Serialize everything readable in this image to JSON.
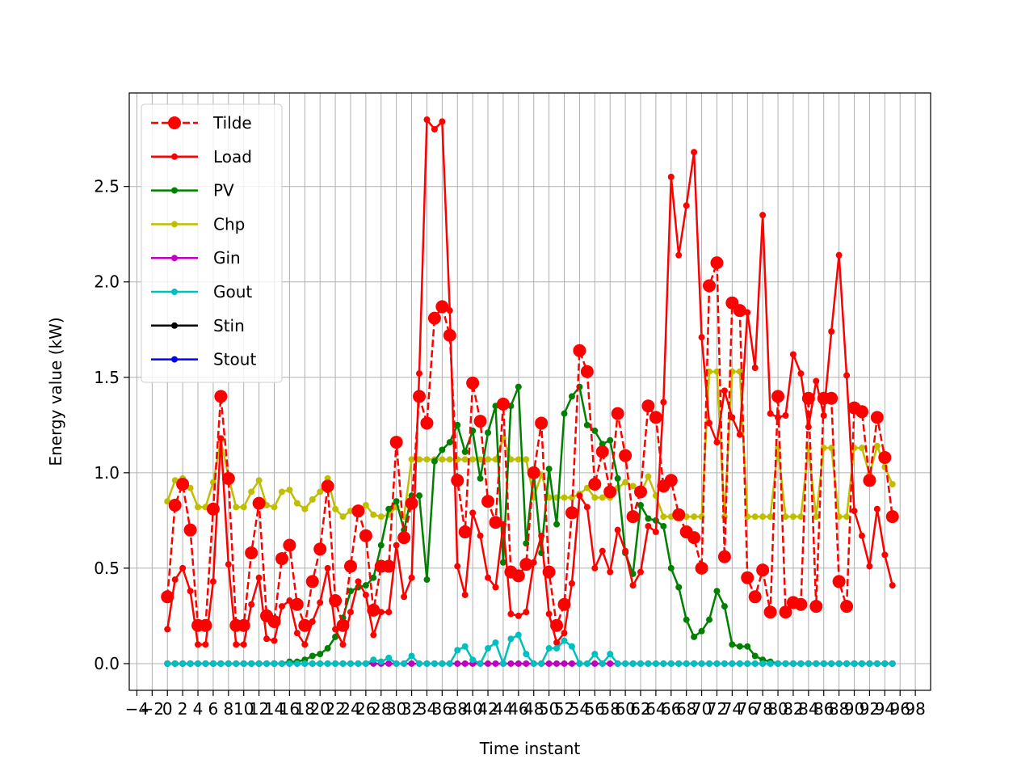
{
  "chart_data": {
    "type": "line",
    "title": "",
    "xlabel": "Time instant",
    "ylabel": "Energy value (kW)",
    "xlim": [
      -5,
      100
    ],
    "ylim": [
      -0.14,
      2.99
    ],
    "grid": true,
    "legend_position": "upper-left",
    "xticks": [
      -4,
      -2,
      0,
      2,
      4,
      6,
      8,
      10,
      12,
      14,
      16,
      18,
      20,
      22,
      24,
      26,
      28,
      30,
      32,
      34,
      36,
      38,
      40,
      42,
      44,
      46,
      48,
      50,
      52,
      54,
      56,
      58,
      60,
      62,
      64,
      66,
      68,
      70,
      72,
      74,
      76,
      78,
      80,
      82,
      84,
      86,
      88,
      90,
      92,
      94,
      96,
      98
    ],
    "yticks": [
      0.0,
      0.5,
      1.0,
      1.5,
      2.0,
      2.5
    ],
    "ytick_labels": [
      "0.0",
      "0.5",
      "1.0",
      "1.5",
      "2.0",
      "2.5"
    ],
    "series": [
      {
        "name": "Tilde",
        "color": "#ff0000",
        "style": "dashed",
        "marker": "large-dot",
        "values": [
          0.35,
          0.83,
          0.94,
          0.7,
          0.2,
          0.2,
          0.81,
          1.4,
          0.97,
          0.2,
          0.2,
          0.58,
          0.84,
          0.25,
          0.22,
          0.55,
          0.62,
          0.31,
          0.2,
          0.43,
          0.6,
          0.93,
          0.33,
          0.2,
          0.51,
          0.8,
          0.67,
          0.28,
          0.51,
          0.51,
          1.16,
          0.66,
          0.84,
          1.4,
          1.26,
          1.81,
          1.87,
          1.72,
          0.96,
          0.69,
          1.47,
          1.27,
          0.85,
          0.74,
          1.36,
          0.48,
          0.46,
          0.52,
          1.0,
          1.26,
          0.48,
          0.2,
          0.31,
          0.79,
          1.64,
          1.53,
          0.94,
          1.11,
          0.9,
          1.31,
          1.09,
          0.77,
          0.9,
          1.35,
          1.29,
          0.93,
          0.96,
          0.78,
          0.69,
          0.66,
          0.5,
          1.98,
          2.1,
          0.56,
          1.89,
          1.85,
          0.45,
          0.35,
          0.49,
          0.27,
          1.4,
          0.27,
          0.32,
          0.31,
          1.39,
          0.3,
          1.39,
          1.39,
          0.43,
          0.3,
          1.34,
          1.32,
          0.96,
          1.29,
          1.08,
          0.77
        ]
      },
      {
        "name": "Load",
        "color": "#ff0000",
        "style": "solid",
        "marker": "small-dot",
        "values": [
          0.18,
          0.44,
          0.5,
          0.38,
          0.1,
          0.1,
          0.43,
          1.18,
          0.52,
          0.1,
          0.1,
          0.31,
          0.45,
          0.13,
          0.12,
          0.3,
          0.33,
          0.16,
          0.1,
          0.22,
          0.32,
          0.5,
          0.18,
          0.1,
          0.27,
          0.43,
          0.36,
          0.15,
          0.27,
          0.27,
          0.62,
          0.35,
          0.45,
          1.52,
          2.85,
          2.8,
          2.84,
          1.85,
          0.51,
          0.36,
          0.79,
          0.67,
          0.45,
          0.4,
          0.73,
          0.26,
          0.25,
          0.27,
          0.53,
          0.67,
          0.26,
          0.11,
          0.16,
          0.42,
          0.88,
          0.82,
          0.5,
          0.59,
          0.48,
          0.7,
          0.59,
          0.41,
          0.48,
          0.72,
          0.69,
          1.37,
          2.55,
          2.14,
          2.4,
          2.68,
          1.71,
          1.26,
          1.16,
          1.43,
          1.29,
          1.2,
          1.84,
          1.55,
          2.35,
          1.31,
          1.29,
          1.3,
          1.62,
          1.52,
          1.24,
          1.48,
          1.3,
          1.74,
          2.14,
          1.51,
          0.8,
          0.67,
          0.51,
          0.81,
          0.57,
          0.41
        ]
      },
      {
        "name": "PV",
        "color": "#008000",
        "style": "solid",
        "marker": "small-dot",
        "values": [
          0,
          0,
          0,
          0,
          0,
          0,
          0,
          0,
          0,
          0,
          0,
          0,
          0,
          0,
          0,
          0,
          0.01,
          0.01,
          0.02,
          0.04,
          0.05,
          0.08,
          0.14,
          0.24,
          0.38,
          0.4,
          0.41,
          0.45,
          0.62,
          0.81,
          0.85,
          0.7,
          0.88,
          0.88,
          0.44,
          1.06,
          1.12,
          1.16,
          1.25,
          1.11,
          1.22,
          0.97,
          1.21,
          1.35,
          0.53,
          1.35,
          1.45,
          0.63,
          1.0,
          0.58,
          1.02,
          0.73,
          1.31,
          1.4,
          1.45,
          1.25,
          1.22,
          1.15,
          1.17,
          0.97,
          0.58,
          0.47,
          0.83,
          0.76,
          0.75,
          0.72,
          0.5,
          0.4,
          0.23,
          0.14,
          0.17,
          0.23,
          0.38,
          0.3,
          0.1,
          0.09,
          0.09,
          0.04,
          0.02,
          0.01,
          0,
          0,
          0,
          0,
          0,
          0,
          0,
          0,
          0,
          0,
          0,
          0,
          0,
          0,
          0,
          0
        ]
      },
      {
        "name": "Chp",
        "color": "#bfbf00",
        "style": "solid",
        "marker": "small-dot",
        "values": [
          0.85,
          0.96,
          0.97,
          0.92,
          0.82,
          0.82,
          0.95,
          1.17,
          0.98,
          0.82,
          0.82,
          0.9,
          0.96,
          0.83,
          0.82,
          0.9,
          0.91,
          0.84,
          0.81,
          0.86,
          0.9,
          0.97,
          0.81,
          0.77,
          0.8,
          0.81,
          0.83,
          0.78,
          0.77,
          0.78,
          0.82,
          0.77,
          1.07,
          1.07,
          1.07,
          1.07,
          1.07,
          1.07,
          1.07,
          1.07,
          1.07,
          1.07,
          1.07,
          1.07,
          1.18,
          1.07,
          1.07,
          1.07,
          0.87,
          0.99,
          0.87,
          0.87,
          0.87,
          0.87,
          0.89,
          0.92,
          0.87,
          0.87,
          0.87,
          0.92,
          0.95,
          0.93,
          0.89,
          0.98,
          0.88,
          0.77,
          0.77,
          0.77,
          0.77,
          0.77,
          0.77,
          1.53,
          1.53,
          0.77,
          1.53,
          1.53,
          0.77,
          0.77,
          0.77,
          0.77,
          1.13,
          0.77,
          0.77,
          0.77,
          1.13,
          0.77,
          1.13,
          1.13,
          0.77,
          0.77,
          1.13,
          1.13,
          0.99,
          1.14,
          1.03,
          0.94
        ]
      },
      {
        "name": "Gin",
        "color": "#bf00bf",
        "style": "solid",
        "marker": "small-dot",
        "values": [
          0,
          0,
          0,
          0,
          0,
          0,
          0,
          0,
          0,
          0,
          0,
          0,
          0,
          0,
          0,
          0,
          0,
          0,
          0,
          0,
          0,
          0,
          0,
          0,
          0,
          0,
          0,
          0,
          0,
          0,
          0,
          0,
          0,
          0,
          0,
          0,
          0,
          0,
          0,
          0,
          0,
          0,
          0,
          0,
          0,
          0,
          0,
          0,
          0,
          0,
          0,
          0,
          0,
          0,
          0,
          0,
          0,
          0,
          0,
          0,
          0,
          0,
          0,
          0,
          0,
          0,
          0,
          0,
          0,
          0,
          0,
          0,
          0,
          0,
          0,
          0,
          0,
          0,
          0,
          0,
          0,
          0,
          0,
          0,
          0,
          0,
          0,
          0,
          0,
          0,
          0,
          0,
          0,
          0,
          0,
          0
        ]
      },
      {
        "name": "Gout",
        "color": "#00bfbf",
        "style": "solid",
        "marker": "small-dot",
        "values": [
          0,
          0,
          0,
          0,
          0,
          0,
          0,
          0,
          0,
          0,
          0,
          0,
          0,
          0,
          0,
          0,
          0,
          0,
          0,
          0,
          0,
          0,
          0,
          0,
          0,
          0,
          0,
          0.02,
          0.01,
          0.03,
          0,
          0,
          0.04,
          0,
          0,
          0,
          0,
          0,
          0.07,
          0.09,
          0.02,
          0,
          0.08,
          0.11,
          0,
          0.13,
          0.15,
          0.05,
          0,
          0,
          0.08,
          0.08,
          0.12,
          0.09,
          0,
          0,
          0.05,
          0,
          0.05,
          0,
          0,
          0,
          0,
          0,
          0,
          0,
          0,
          0,
          0,
          0,
          0,
          0,
          0,
          0,
          0,
          0,
          0,
          0,
          0,
          0,
          0,
          0,
          0,
          0,
          0,
          0,
          0,
          0,
          0,
          0,
          0,
          0,
          0,
          0,
          0,
          0
        ]
      },
      {
        "name": "Stin",
        "color": "#000000",
        "style": "solid",
        "marker": "small-dot",
        "values": []
      },
      {
        "name": "Stout",
        "color": "#0000ff",
        "style": "solid",
        "marker": "small-dot",
        "values": []
      }
    ]
  }
}
